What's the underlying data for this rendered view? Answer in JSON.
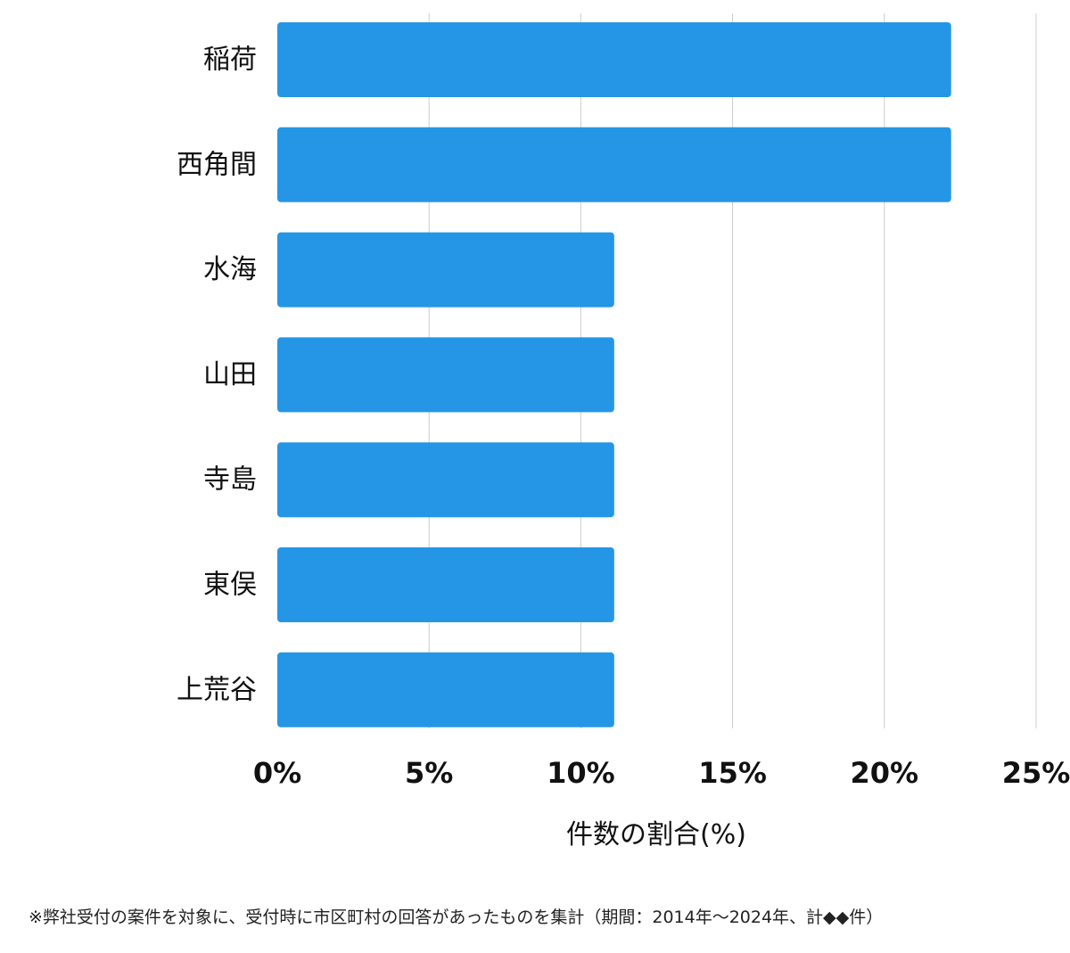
{
  "chart_data": {
    "type": "bar",
    "orientation": "horizontal",
    "categories": [
      "稲荷",
      "西角間",
      "水海",
      "山田",
      "寺島",
      "東俣",
      "上荒谷"
    ],
    "values": [
      22.2,
      22.2,
      11.1,
      11.1,
      11.1,
      11.1,
      11.1
    ],
    "xlabel": "件数の割合(%)",
    "xlim": [
      0,
      25
    ],
    "xticks": [
      0,
      5,
      10,
      15,
      20,
      25
    ],
    "xtick_labels": [
      "0%",
      "5%",
      "10%",
      "15%",
      "20%",
      "25%"
    ],
    "bar_color": "#2596e6",
    "grid": "vertical",
    "grid_color": "#cccccc"
  },
  "footnote": "※弊社受付の案件を対象に、受付時に市区町村の回答があったものを集計（期間：2014年～2024年、計◆◆件）"
}
